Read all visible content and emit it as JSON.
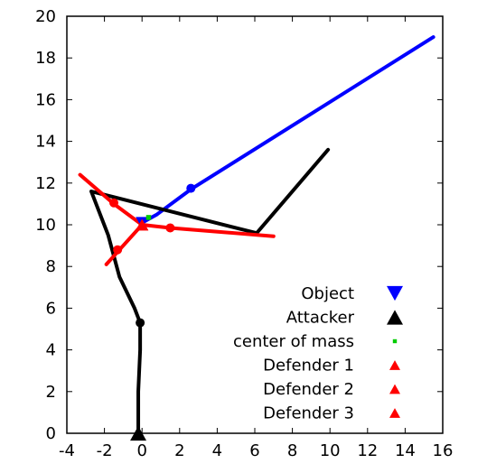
{
  "chart_data": {
    "type": "line",
    "title": "",
    "xlabel": "",
    "ylabel": "",
    "xlim": [
      -4,
      16
    ],
    "ylim": [
      0,
      20
    ],
    "xticks": [
      "-4",
      "-2",
      "0",
      "2",
      "4",
      "6",
      "8",
      "10",
      "12",
      "14",
      "16"
    ],
    "yticks": [
      "0",
      "2",
      "4",
      "6",
      "8",
      "10",
      "12",
      "14",
      "16",
      "18",
      "20"
    ],
    "grid": false,
    "legend_position": "bottom-right",
    "series": [
      {
        "name": "Object",
        "color": "#0000ff",
        "marker": "triangle-down",
        "points": [
          [
            0,
            10.1
          ],
          [
            0.8,
            10.5
          ],
          [
            2.6,
            11.7
          ],
          [
            15.5,
            19.0
          ]
        ],
        "dots": [
          [
            2.6,
            11.75
          ]
        ]
      },
      {
        "name": "Attacker",
        "color": "#000000",
        "marker": "triangle-up",
        "points": [
          [
            -0.2,
            0
          ],
          [
            -0.2,
            2.0
          ],
          [
            -0.1,
            4.0
          ],
          [
            -0.1,
            5.3
          ],
          [
            -0.4,
            6.0
          ],
          [
            -1.2,
            7.5
          ],
          [
            -1.8,
            9.5
          ],
          [
            -2.7,
            11.6
          ],
          [
            6.1,
            9.6
          ],
          [
            9.9,
            13.6
          ]
        ],
        "dots": [
          [
            -0.1,
            5.3
          ]
        ]
      },
      {
        "name": "center of mass",
        "color": "#00cc00",
        "marker": "square",
        "points": [
          [
            0.35,
            10.35
          ]
        ],
        "dots": []
      },
      {
        "name": "Defender 1",
        "color": "#ff0000",
        "marker": "triangle-up",
        "points": [
          [
            0,
            10.0
          ],
          [
            -1.5,
            11.0
          ],
          [
            -3.3,
            12.4
          ]
        ],
        "dots": [
          [
            -1.5,
            11.05
          ]
        ]
      },
      {
        "name": "Defender 2",
        "color": "#ff0000",
        "marker": "triangle-up",
        "points": [
          [
            0,
            10.0
          ],
          [
            1.5,
            9.85
          ],
          [
            7.0,
            9.45
          ]
        ],
        "dots": [
          [
            1.5,
            9.85
          ]
        ]
      },
      {
        "name": "Defender 3",
        "color": "#ff0000",
        "marker": "triangle-up",
        "points": [
          [
            0,
            10.0
          ],
          [
            -1.2,
            8.8
          ],
          [
            -1.9,
            8.1
          ]
        ],
        "dots": [
          [
            -1.3,
            8.8
          ]
        ]
      }
    ]
  }
}
